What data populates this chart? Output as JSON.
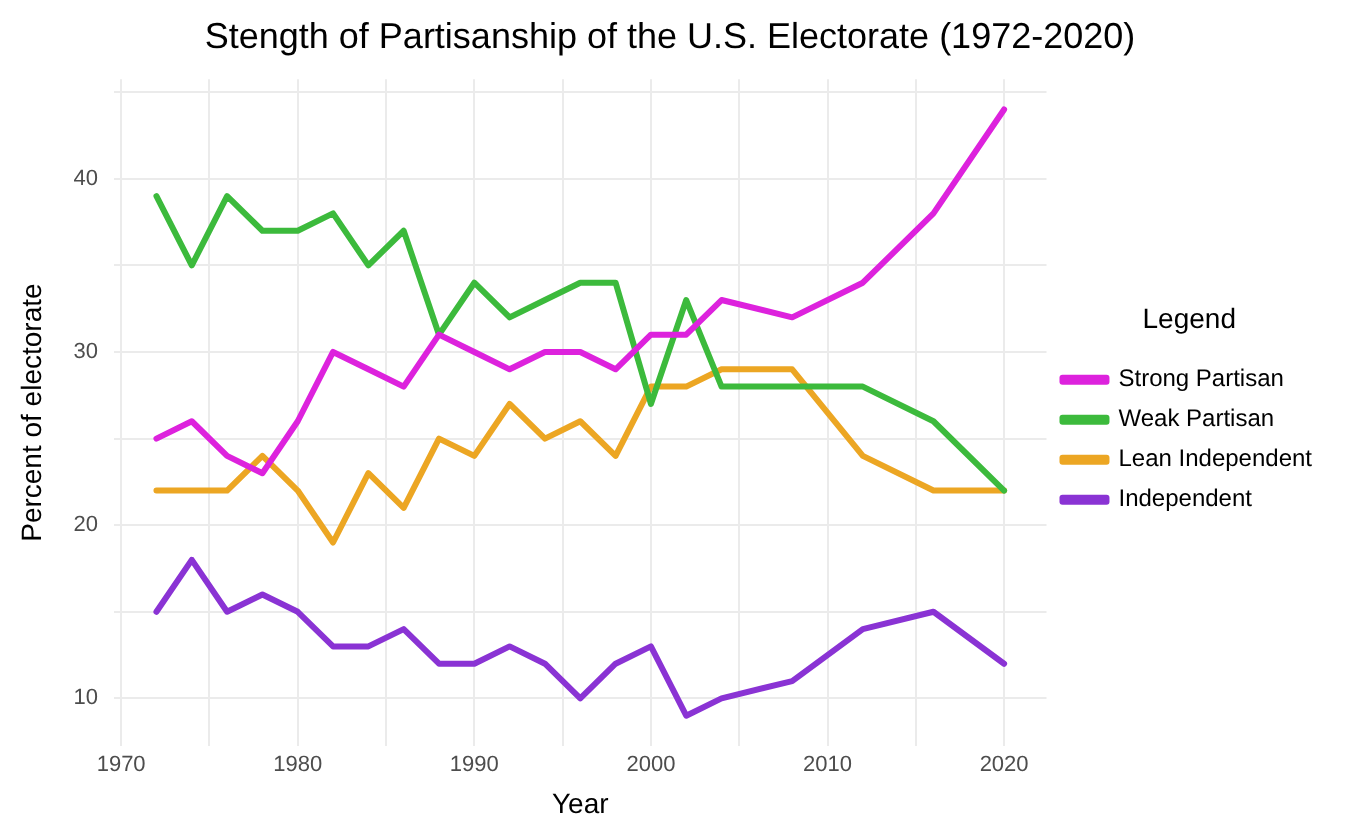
{
  "chart_data": {
    "type": "line",
    "title": "Stength of Partisanship of the U.S. Electorate (1972-2020)",
    "xlabel": "Year",
    "ylabel": "Percent of electorate",
    "legend_title": "Legend",
    "x": [
      1972,
      1974,
      1976,
      1978,
      1980,
      1982,
      1984,
      1986,
      1988,
      1990,
      1992,
      1994,
      1996,
      1998,
      2000,
      2002,
      2004,
      2008,
      2012,
      2016,
      2020
    ],
    "series": [
      {
        "name": "Strong Partisan",
        "color": "#dd22dd",
        "values": [
          25,
          26,
          24,
          23,
          26,
          30,
          29,
          28,
          31,
          30,
          29,
          30,
          30,
          29,
          31,
          31,
          33,
          32,
          34,
          38,
          44
        ]
      },
      {
        "name": "Weak Partisan",
        "color": "#3cba3c",
        "values": [
          39,
          35,
          39,
          37,
          37,
          38,
          35,
          37,
          31,
          34,
          32,
          33,
          34,
          34,
          27,
          33,
          28,
          28,
          28,
          26,
          22
        ]
      },
      {
        "name": "Lean Independent",
        "color": "#eca623",
        "values": [
          22,
          22,
          22,
          24,
          22,
          19,
          23,
          21,
          25,
          24,
          27,
          25,
          26,
          24,
          28,
          28,
          29,
          29,
          24,
          22,
          22
        ]
      },
      {
        "name": "Independent",
        "color": "#8a33d4",
        "values": [
          15,
          18,
          15,
          16,
          15,
          13,
          13,
          14,
          12,
          12,
          13,
          12,
          10,
          12,
          13,
          9,
          10,
          11,
          14,
          15,
          12
        ]
      }
    ],
    "xlim": [
      1969.6,
      2022.4
    ],
    "ylim": [
      7.25,
      45.75
    ],
    "xticks": [
      1970,
      {
        "value": 1975,
        "label": null
      },
      1980,
      {
        "value": 1985,
        "label": null
      },
      1990,
      {
        "value": 1995,
        "label": null
      },
      2000,
      {
        "value": 2005,
        "label": null
      },
      2010,
      {
        "value": 2015,
        "label": null
      },
      2020
    ],
    "yticks": [
      10,
      {
        "value": 15,
        "label": null
      },
      20,
      {
        "value": 25,
        "label": null
      },
      30,
      {
        "value": 35,
        "label": null
      },
      40,
      {
        "value": 45,
        "label": null
      }
    ],
    "grid": true,
    "legend": "right",
    "marker": "none",
    "line_style": "solid"
  }
}
